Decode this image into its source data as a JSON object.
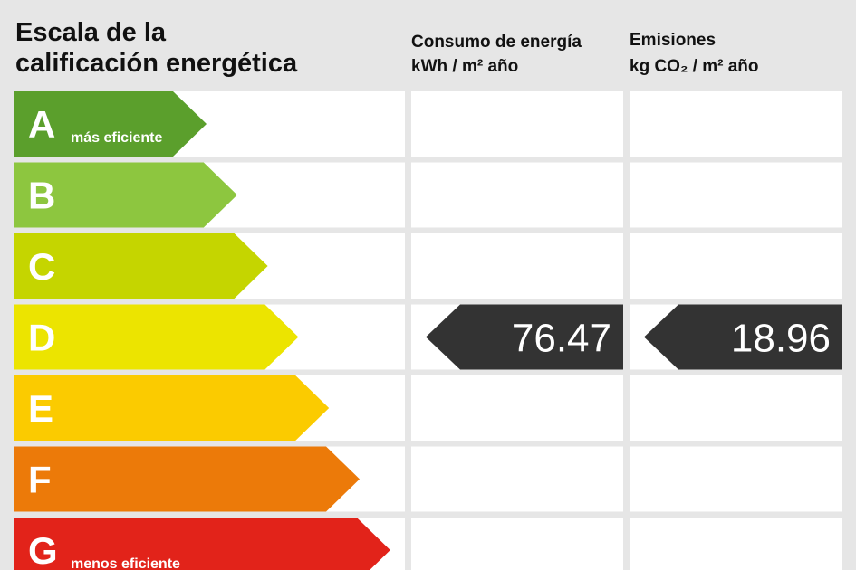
{
  "title_lines": [
    "Escala de la",
    "calificación energética"
  ],
  "columns": [
    {
      "title": "Consumo de energía",
      "unit": "kWh / m² año"
    },
    {
      "title": "Emisiones",
      "unit": "kg CO₂ / m² año"
    }
  ],
  "classes": [
    {
      "letter": "A",
      "note": "más eficiente",
      "color": "#5b9f2c"
    },
    {
      "letter": "B",
      "color": "#8dc63f"
    },
    {
      "letter": "C",
      "color": "#c5d500"
    },
    {
      "letter": "D",
      "color": "#ece400",
      "values": [
        "76.47",
        "18.96"
      ]
    },
    {
      "letter": "E",
      "color": "#fbcb00"
    },
    {
      "letter": "F",
      "color": "#ec7a09"
    },
    {
      "letter": "G",
      "note": "menos eficiente",
      "color": "#e2231a"
    }
  ]
}
